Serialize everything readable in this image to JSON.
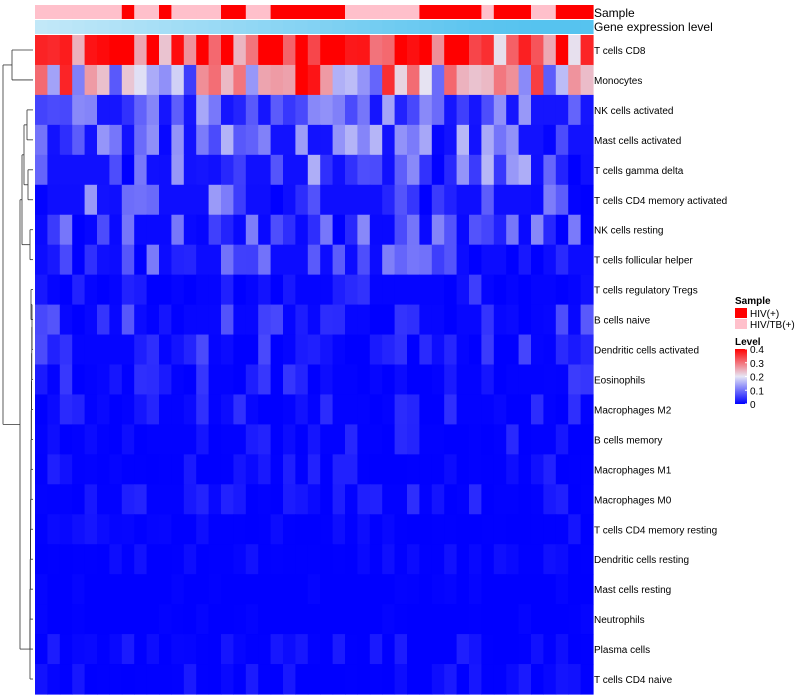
{
  "chart_data": {
    "type": "heatmap",
    "title": "",
    "annotation_titles": [
      "Sample",
      "Gene expression level"
    ],
    "rows": [
      "T cells CD8",
      "Monocytes",
      "NK cells activated",
      "Mast cells activated",
      "T cells gamma delta",
      "T cells CD4 memory activated",
      "NK cells resting",
      "T cells follicular helper",
      "T cells regulatory  Tregs",
      "B cells naive",
      "Dendritic cells activated",
      "Eosinophils",
      "Macrophages M2",
      "B cells memory",
      "Macrophages M1",
      "Macrophages M0",
      "T cells CD4 memory resting",
      "Dendritic cells resting",
      "Mast cells resting",
      "Neutrophils",
      "Plasma cells",
      "T cells CD4 naive"
    ],
    "n_columns": 45,
    "sample_groups": [
      "HIV/TB(+)",
      "HIV/TB(+)",
      "HIV/TB(+)",
      "HIV/TB(+)",
      "HIV/TB(+)",
      "HIV/TB(+)",
      "HIV/TB(+)",
      "HIV(+)",
      "HIV/TB(+)",
      "HIV/TB(+)",
      "HIV(+)",
      "HIV/TB(+)",
      "HIV/TB(+)",
      "HIV/TB(+)",
      "HIV/TB(+)",
      "HIV(+)",
      "HIV(+)",
      "HIV/TB(+)",
      "HIV/TB(+)",
      "HIV(+)",
      "HIV(+)",
      "HIV(+)",
      "HIV(+)",
      "HIV(+)",
      "HIV(+)",
      "HIV/TB(+)",
      "HIV/TB(+)",
      "HIV/TB(+)",
      "HIV/TB(+)",
      "HIV/TB(+)",
      "HIV/TB(+)",
      "HIV(+)",
      "HIV(+)",
      "HIV(+)",
      "HIV(+)",
      "HIV(+)",
      "HIV/TB(+)",
      "HIV(+)",
      "HIV(+)",
      "HIV(+)",
      "HIV/TB(+)",
      "HIV/TB(+)",
      "HIV(+)",
      "HIV(+)",
      "HIV(+)"
    ],
    "expression_level": [
      0.25,
      0.27,
      0.29,
      0.31,
      0.33,
      0.35,
      0.37,
      0.39,
      0.41,
      0.43,
      0.45,
      0.47,
      0.49,
      0.51,
      0.53,
      0.55,
      0.57,
      0.59,
      0.61,
      0.63,
      0.65,
      0.67,
      0.69,
      0.71,
      0.73,
      0.75,
      0.77,
      0.79,
      0.81,
      0.83,
      0.85,
      0.87,
      0.89,
      0.91,
      0.93,
      0.95,
      0.96,
      0.97,
      0.98,
      0.99,
      1.0,
      1.0,
      1.0,
      1.0,
      1.0
    ],
    "row_profiles": [
      {
        "base": 0.33,
        "var": 0.08
      },
      {
        "base": 0.21,
        "var": 0.1
      },
      {
        "base": 0.09,
        "var": 0.04
      },
      {
        "base": 0.08,
        "var": 0.05
      },
      {
        "base": 0.07,
        "var": 0.06
      },
      {
        "base": 0.06,
        "var": 0.05
      },
      {
        "base": 0.04,
        "var": 0.05
      },
      {
        "base": 0.05,
        "var": 0.04
      },
      {
        "base": 0.02,
        "var": 0.03
      },
      {
        "base": 0.03,
        "var": 0.03
      },
      {
        "base": 0.02,
        "var": 0.03
      },
      {
        "base": 0.015,
        "var": 0.025
      },
      {
        "base": 0.012,
        "var": 0.02
      },
      {
        "base": 0.01,
        "var": 0.02
      },
      {
        "base": 0.006,
        "var": 0.015
      },
      {
        "base": 0.008,
        "var": 0.02
      },
      {
        "base": 0.003,
        "var": 0.01
      },
      {
        "base": 0.003,
        "var": 0.01
      },
      {
        "base": 0.0,
        "var": 0.003
      },
      {
        "base": 0.0,
        "var": 0.003
      },
      {
        "base": 0.004,
        "var": 0.015
      },
      {
        "base": 0.004,
        "var": 0.015
      }
    ],
    "color_scale": {
      "min": 0,
      "max": 0.4,
      "low": "#0000ff",
      "mid": "#e6e6f5",
      "high": "#ff0000",
      "mid_value": 0.2
    },
    "legend": {
      "sample_title": "Sample",
      "sample_entries": [
        {
          "label": "HIV(+)",
          "color": "#ff0000"
        },
        {
          "label": "HIV/TB(+)",
          "color": "#ffc0cb"
        }
      ],
      "level_title": "Level",
      "level_ticks": [
        "0.4",
        "0.3",
        "0.2",
        "0.1",
        "0"
      ],
      "level_tick_values": [
        0.4,
        0.3,
        0.2,
        0.1,
        0
      ]
    },
    "expression_colors": {
      "low": "#e6f4fb",
      "high": "#56c3ef"
    },
    "legend_placement": "right"
  }
}
